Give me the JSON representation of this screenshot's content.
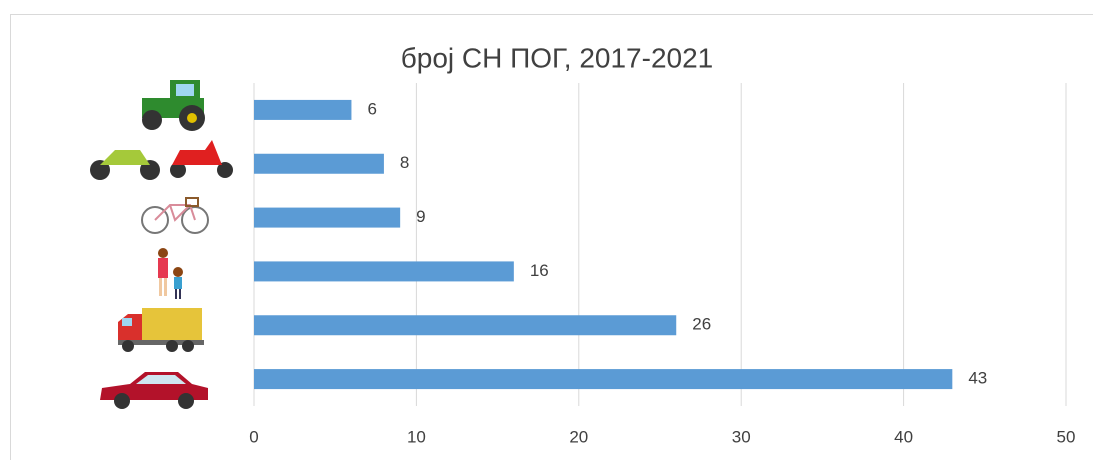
{
  "chart_data": {
    "type": "bar",
    "orientation": "horizontal",
    "title": "број СН ПОГ, 2017-2021",
    "categories": [
      null,
      null,
      null,
      null,
      null,
      null
    ],
    "values": [
      6,
      8,
      9,
      16,
      26,
      43
    ],
    "color": "#5b9bd5",
    "xlim": [
      0,
      50
    ],
    "xticks": [
      0,
      10,
      20,
      30,
      40,
      50
    ],
    "grid": true
  }
}
